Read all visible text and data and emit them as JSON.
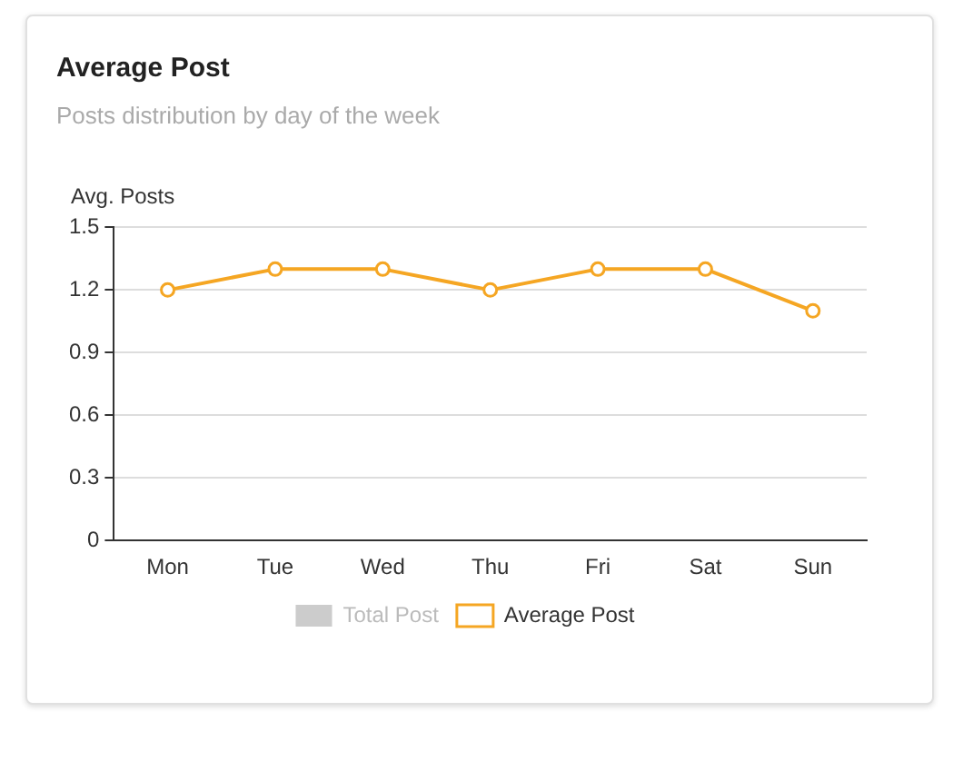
{
  "chart_data": {
    "type": "line",
    "title": "Average Post",
    "subtitle": "Posts distribution by day of the week",
    "ylabel": "Avg. Posts",
    "categories": [
      "Mon",
      "Tue",
      "Wed",
      "Thu",
      "Fri",
      "Sat",
      "Sun"
    ],
    "series": [
      {
        "name": "Total Post",
        "type": "bar",
        "color": "#cccccc",
        "values": [
          null,
          null,
          null,
          null,
          null,
          null,
          null
        ]
      },
      {
        "name": "Average Post",
        "color": "#f5a623",
        "values": [
          1.2,
          1.3,
          1.3,
          1.2,
          1.3,
          1.3,
          1.1
        ]
      }
    ],
    "ylim": [
      0,
      1.5
    ],
    "yticks": [
      0,
      0.3,
      0.6,
      0.9,
      1.2,
      1.5
    ],
    "grid": "y",
    "legend": "bottom",
    "marker": "circle",
    "line_style": "solid"
  }
}
